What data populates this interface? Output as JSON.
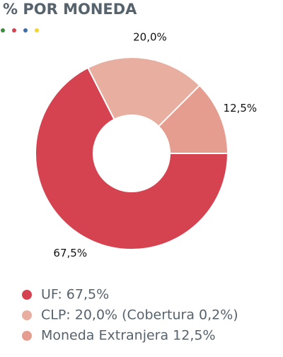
{
  "chart_data": {
    "type": "pie",
    "title": "% POR MONEDA",
    "categories": [
      "UF: 67,5%",
      "CLP: 20,0% (Cobertura 0,2%)",
      "Moneda Extranjera 12,5%"
    ],
    "values": [
      67.5,
      20.0,
      12.5
    ],
    "value_labels": [
      "67,5%",
      "20,0%",
      "12,5%"
    ],
    "colors": [
      "#d4434f",
      "#e8ae9f",
      "#e59d8f"
    ]
  }
}
